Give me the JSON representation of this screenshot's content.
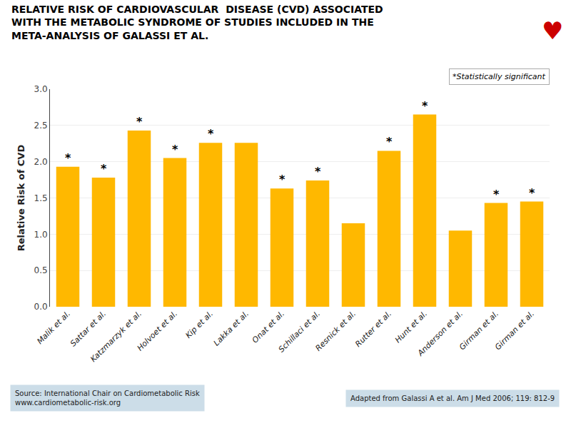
{
  "chart_data": {
    "type": "bar",
    "title": "RELATIVE RISK OF CARDIOVASCULAR  DISEASE (CVD) ASSOCIATED\nWITH THE METABOLIC SYNDROME OF STUDIES INCLUDED IN THE\nMETA-ANALYSIS OF GALASSI ET AL.",
    "ylabel": "Relative Risk of CVD",
    "categories": [
      "Malik et al.",
      "Sattar et al.",
      "Katzmarzyk et al.",
      "Holvoet et al.",
      "Kip et al.",
      "Lakka et al.",
      "Onat et al.",
      "Schillaci et al.",
      "Resnick et al.",
      "Rutter et al.",
      "Hunt et al.",
      "Anderson et al.",
      "Girman et al.",
      "Girman et al."
    ],
    "values": [
      1.93,
      1.78,
      2.43,
      2.05,
      2.26,
      2.26,
      1.63,
      1.74,
      1.15,
      2.15,
      2.65,
      1.05,
      1.43,
      1.45
    ],
    "color": "#FFB800",
    "ylim": [
      0,
      3.0
    ],
    "yticks": [
      {
        "value": 0.0,
        "label": "0.0"
      },
      0.5,
      {
        "value": 1.0,
        "label": "1.0"
      },
      1.5,
      {
        "value": 2.0,
        "label": "2.0"
      },
      2.5,
      {
        "value": 3.0,
        "label": "3.0"
      }
    ],
    "grid": true,
    "annotations": [
      {
        "text": "*Statistically significant"
      },
      {
        "text": "♥"
      },
      {
        "text": "Source: International Chair on Cardiometabolic Risk\nwww.cardiometabolic-risk.org"
      },
      {
        "text": "Adapted from Galassi A et al. Am J Med 2006; 119: 812-9"
      },
      {
        "x": 0,
        "text": "*"
      },
      {
        "x": 1,
        "text": "*"
      },
      {
        "x": 2,
        "text": "*"
      },
      {
        "x": 3,
        "text": "*"
      },
      {
        "x": 4,
        "text": "*"
      },
      {
        "x": 6,
        "text": "*"
      },
      {
        "x": 7,
        "text": "*"
      },
      {
        "x": 9,
        "text": "*"
      },
      {
        "x": 10,
        "text": "*"
      },
      {
        "x": 12,
        "text": "*"
      },
      {
        "x": 13,
        "text": "*"
      }
    ]
  }
}
